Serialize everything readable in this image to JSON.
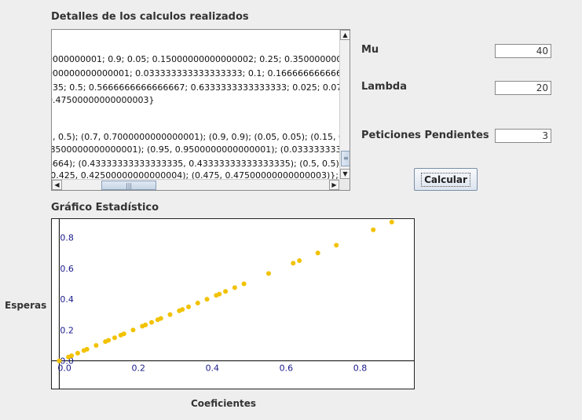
{
  "details": {
    "heading": "Detalles de los calculos realizados",
    "lines": [
      "0000000001; 0.9; 0.05; 0.15000000000000002; 0.25; 0.3500000000",
      "000000000000001; 0.033333333333333333; 0.1; 0.1666666666666666",
      "335; 0.5; 0.5666666666666667; 0.6333333333333333; 0.025; 0.07",
      " 0.47500000000000003}",
      "5, 0.5); (0.7, 0.7000000000000001); (0.9, 0.9); (0.05, 0.05); (0.15, 0.1",
      ".8500000000000001); (0.95, 0.9500000000000001); (0.0333333333",
      "6664); (0.43333333333333335, 0.43333333333333335); (0.5, 0.5);",
      "(0.425, 0.42500000000000004); (0.475, 0.47500000000000003)};"
    ]
  },
  "form": {
    "mu_label": "Mu",
    "mu_value": "40",
    "lambda_label": "Lambda",
    "lambda_value": "20",
    "pending_label": "Peticiones Pendientes",
    "pending_value": "3",
    "calc_button": "Calcular"
  },
  "chart_heading": "Gráfico Estadístico",
  "chart_data": {
    "type": "scatter",
    "xlabel": "Coeficientes",
    "ylabel": "Esperas",
    "xlim": [
      -0.02,
      0.96
    ],
    "ylim": [
      -0.18,
      0.92
    ],
    "x_ticks": [
      "0.0",
      "0.2",
      "0.4",
      "0.6",
      "0.8"
    ],
    "y_ticks": [
      "0.0",
      "0.2",
      "0.4",
      "0.6",
      "0.8"
    ],
    "point_color": "#f2c200",
    "points": [
      [
        0.0,
        0.0
      ],
      [
        0.025,
        0.025
      ],
      [
        0.0333,
        0.0333
      ],
      [
        0.05,
        0.05
      ],
      [
        0.0667,
        0.0667
      ],
      [
        0.075,
        0.075
      ],
      [
        0.1,
        0.1
      ],
      [
        0.125,
        0.125
      ],
      [
        0.1333,
        0.1333
      ],
      [
        0.15,
        0.15
      ],
      [
        0.1667,
        0.1667
      ],
      [
        0.175,
        0.175
      ],
      [
        0.2,
        0.2
      ],
      [
        0.225,
        0.225
      ],
      [
        0.2333,
        0.2333
      ],
      [
        0.25,
        0.25
      ],
      [
        0.2667,
        0.2667
      ],
      [
        0.275,
        0.275
      ],
      [
        0.3,
        0.3
      ],
      [
        0.325,
        0.325
      ],
      [
        0.3333,
        0.3333
      ],
      [
        0.35,
        0.35
      ],
      [
        0.375,
        0.375
      ],
      [
        0.4,
        0.4
      ],
      [
        0.425,
        0.425
      ],
      [
        0.4333,
        0.4333
      ],
      [
        0.45,
        0.45
      ],
      [
        0.475,
        0.475
      ],
      [
        0.5,
        0.5
      ],
      [
        0.5667,
        0.5667
      ],
      [
        0.6333,
        0.6333
      ],
      [
        0.65,
        0.65
      ],
      [
        0.7,
        0.7
      ],
      [
        0.75,
        0.75
      ],
      [
        0.85,
        0.85
      ],
      [
        0.9,
        0.9
      ],
      [
        0.95,
        0.95
      ]
    ]
  }
}
